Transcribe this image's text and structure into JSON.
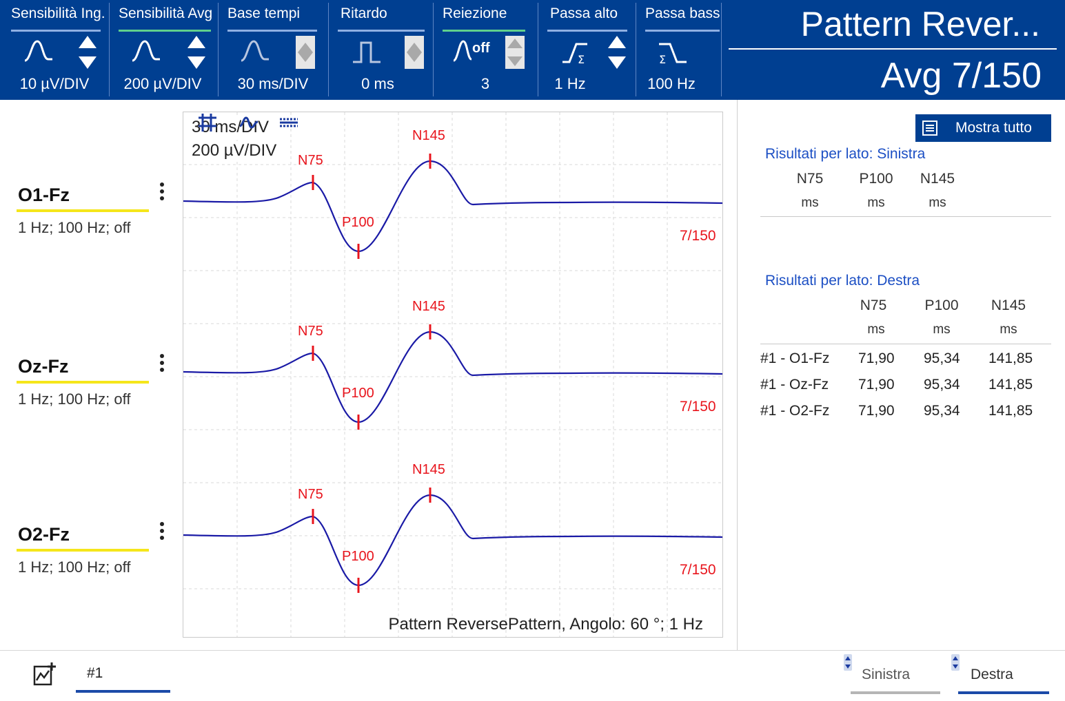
{
  "toolbar": {
    "groups": [
      {
        "title": "Sensibilità Ing.",
        "value": "10 µV/DIV",
        "icon": "wave-icon",
        "spinner": "up-down"
      },
      {
        "title": "Sensibilità Avg",
        "value": "200 µV/DIV",
        "icon": "wave-icon",
        "spinner": "up-down"
      },
      {
        "title": "Base tempi",
        "value": "30 ms/DIV",
        "icon": "wave-icon",
        "spinner": "disabled"
      },
      {
        "title": "Ritardo",
        "value": "0 ms",
        "icon": "pulse-icon",
        "spinner": "disabled"
      },
      {
        "title": "Reiezione",
        "value": "3",
        "icon": "wave-off-icon",
        "icon_text": "off",
        "spinner": "disabled"
      },
      {
        "title": "Passa alto",
        "value": "1 Hz",
        "icon": "high-pass-filter-icon",
        "spinner": "up-down"
      },
      {
        "title": "Passa bass",
        "value": "100 Hz",
        "icon": "low-pass-filter-icon",
        "spinner": "none"
      }
    ],
    "title": "Pattern Rever...",
    "average": "Avg 7/150"
  },
  "channels": [
    {
      "name": "O1-Fz",
      "filters": "1 Hz; 100 Hz; off",
      "count": "7/150"
    },
    {
      "name": "Oz-Fz",
      "filters": "1 Hz; 100 Hz; off",
      "count": "7/150"
    },
    {
      "name": "O2-Fz",
      "filters": "1 Hz; 100 Hz; off",
      "count": "7/150"
    }
  ],
  "plot": {
    "time_scale": "30 ms/DIV",
    "amplitude_scale": "200 µV/DIV",
    "caption": "Pattern ReversePattern, Angolo: 60 °; 1 Hz",
    "markers": {
      "n75": "N75",
      "p100": "P100",
      "n145": "N145"
    },
    "tools": [
      "grid-icon",
      "waveform-icon",
      "baseline-icon"
    ]
  },
  "results": {
    "show_all": "Mostra tutto",
    "left": {
      "heading": "Risultati per lato: Sinistra",
      "columns": [
        "N75",
        "P100",
        "N145"
      ],
      "units": [
        "ms",
        "ms",
        "ms"
      ],
      "rows": []
    },
    "right": {
      "heading": "Risultati per lato: Destra",
      "columns": [
        "N75",
        "P100",
        "N145"
      ],
      "units": [
        "ms",
        "ms",
        "ms"
      ],
      "rows": [
        [
          "#1 - O1-Fz",
          "71,90",
          "95,34",
          "141,85"
        ],
        [
          "#1 - Oz-Fz",
          "71,90",
          "95,34",
          "141,85"
        ],
        [
          "#1 - O2-Fz",
          "71,90",
          "95,34",
          "141,85"
        ]
      ]
    }
  },
  "bottom": {
    "tab": "#1",
    "sides": [
      "Sinistra",
      "Destra"
    ],
    "active_side": "Destra"
  },
  "colors": {
    "toolbar": "#003f91",
    "trace": "#1a1aa6",
    "marker": "#e8141c",
    "channel_bar": "#f5e61b",
    "heading": "#1c4fc4"
  }
}
